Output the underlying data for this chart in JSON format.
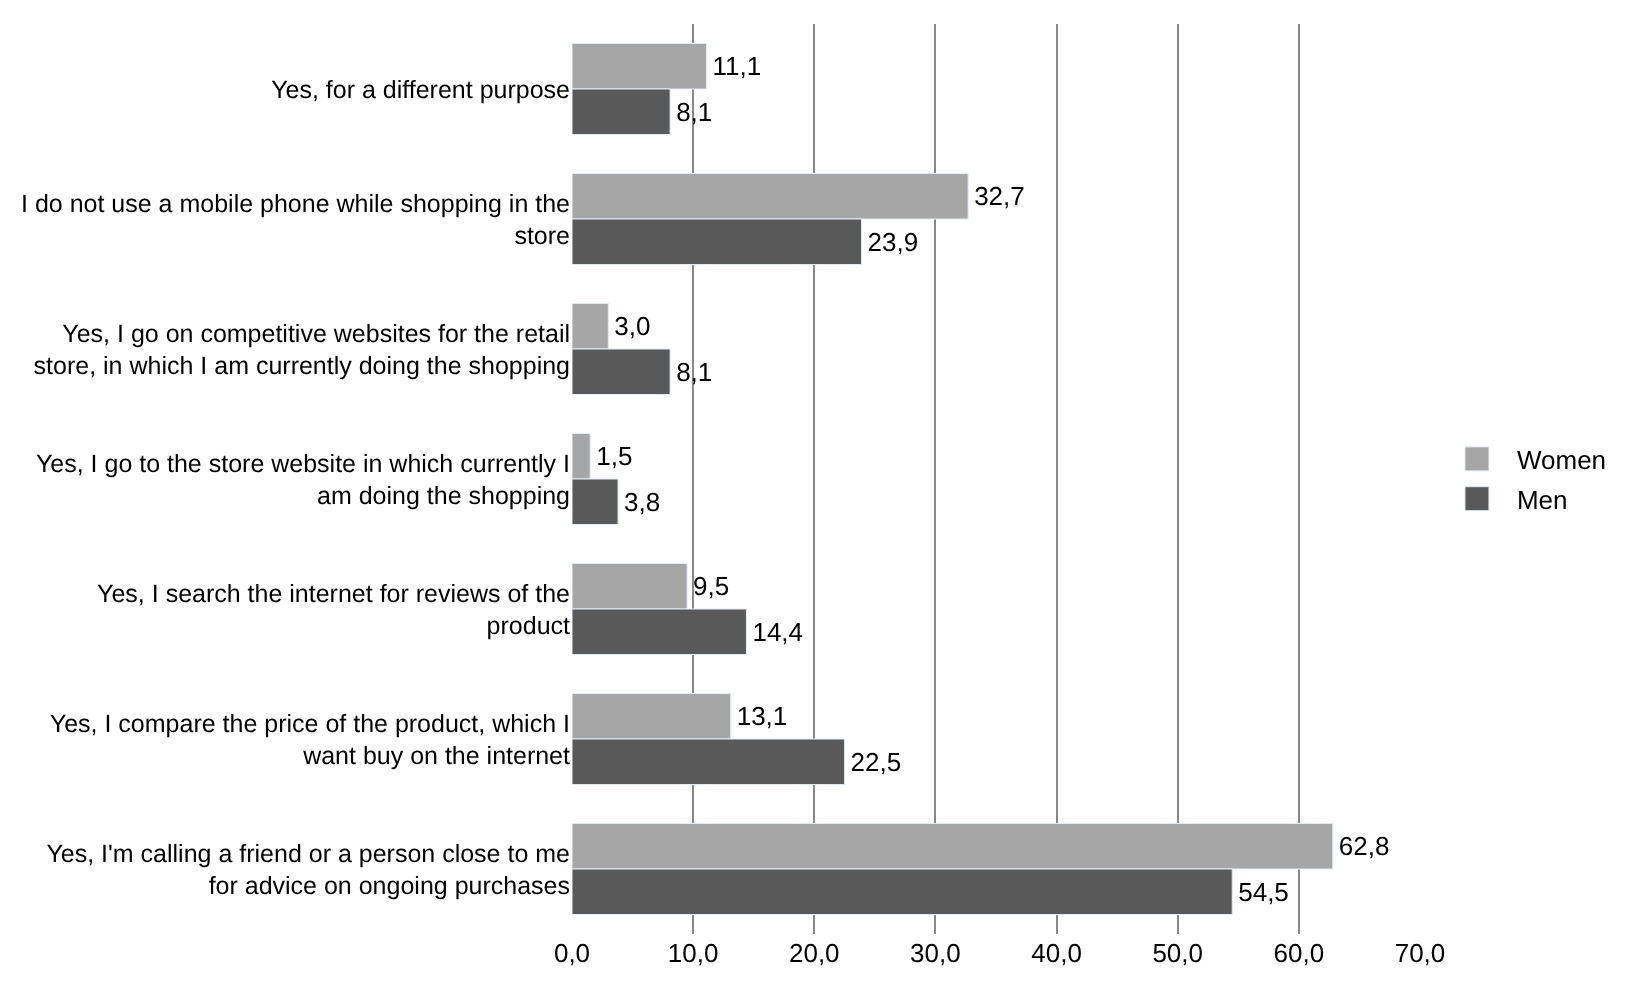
{
  "chart_data": {
    "type": "bar",
    "orientation": "horizontal",
    "categories": [
      "Yes, for a different purpose",
      "I do not use a mobile phone while shopping in the store",
      "Yes, I go on competitive websites for the retail store, in which I am currently doing the shopping",
      "Yes, I go to the store website in which currently I am doing the shopping",
      "Yes, I search the internet for reviews of the product",
      "Yes, I compare the price of the product, which I want buy on the internet",
      "Yes, I'm calling a friend or a person close to me for advice on ongoing purchases"
    ],
    "series": [
      {
        "name": "Women",
        "color": "#a6a6a6",
        "values": [
          11.1,
          32.7,
          3.0,
          1.5,
          9.5,
          13.1,
          62.8
        ],
        "value_labels": [
          "11,1",
          "32,7",
          "3,0",
          "1,5",
          "9,5",
          "13,1",
          "62,8"
        ]
      },
      {
        "name": "Men",
        "color": "#595959",
        "values": [
          8.1,
          23.9,
          8.1,
          3.8,
          14.4,
          22.5,
          54.5
        ],
        "value_labels": [
          "8,1",
          "23,9",
          "8,1",
          "3,8",
          "14,4",
          "22,5",
          "54,5"
        ]
      }
    ],
    "xlim": [
      0,
      70
    ],
    "xticks": [
      {
        "value": 0,
        "label": "0,0"
      },
      {
        "value": 10,
        "label": "10,0"
      },
      {
        "value": 20,
        "label": "20,0"
      },
      {
        "value": 30,
        "label": "30,0"
      },
      {
        "value": 40,
        "label": "40,0"
      },
      {
        "value": 50,
        "label": "50,0"
      },
      {
        "value": 60,
        "label": "60,0"
      },
      {
        "value": 70,
        "label": "70,0"
      }
    ],
    "grid": "x",
    "legend": "right"
  }
}
